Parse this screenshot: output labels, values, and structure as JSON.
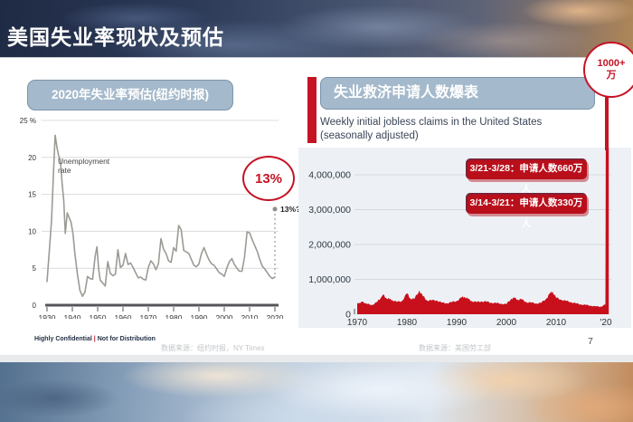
{
  "slide": {
    "title": "美国失业率现状及预估",
    "page_number": "7",
    "footer": {
      "confidential_left": "Highly Confidential",
      "confidential_sep": "|",
      "confidential_right": "Not for Distribution",
      "source_left": "数据来源：纽约时报，NY Times",
      "source_right": "数据来源：美国劳工部"
    },
    "colors": {
      "accent_red": "#c41425",
      "header_fill": "#a4b9cb",
      "header_border": "#7a95ac",
      "panel_bg": "#edf1f5",
      "line_gray": "#9b9b95"
    }
  },
  "left_panel": {
    "header": "2020年失业率预估(纽约时报)",
    "callout": "13%"
  },
  "right_panel": {
    "header": "失业救济申请人数爆表",
    "subtitle_line1": "Weekly initial jobless claims in the United States",
    "subtitle_line2": "(seasonally adjusted)",
    "badges": [
      {
        "label": "3/21-3/28：申请人数660万人"
      },
      {
        "label": "3/14-3/21：申请人数330万人"
      }
    ],
    "spike_callout_line1": "1000+",
    "spike_callout_line2": "万"
  },
  "chart_data": [
    {
      "type": "line",
      "title": "2020年失业率预估(纽约时报)",
      "xlabel": "",
      "ylabel": "Unemployment rate (%)",
      "annotation_lines": [
        "Unemployment",
        "rate"
      ],
      "x_ticks": [
        1930,
        1940,
        1950,
        1960,
        1970,
        1980,
        1990,
        2000,
        2010,
        2020
      ],
      "x_tick_labels": [
        "1930",
        "1940",
        "1950",
        "1960",
        "1970",
        "1980",
        "1990",
        "2000",
        "2010",
        "2020"
      ],
      "y_ticks": [
        0,
        5,
        10,
        15,
        20,
        25
      ],
      "y_tick_labels": [
        "0",
        "5",
        "10",
        "15",
        "20",
        "25 %"
      ],
      "xlim": [
        1930,
        2020
      ],
      "ylim": [
        0,
        25
      ],
      "grid": true,
      "line_color": "#9b9b95",
      "projection": {
        "x": 2020,
        "y": 13,
        "label": "13%?"
      },
      "callout": "13%",
      "series": [
        {
          "name": "Unemployment rate",
          "points": [
            [
              1930,
              3.2
            ],
            [
              1931,
              7.8
            ],
            [
              1931.8,
              11.5
            ],
            [
              1932.5,
              17.5
            ],
            [
              1933.2,
              23
            ],
            [
              1934,
              21.2
            ],
            [
              1934.6,
              20.2
            ],
            [
              1935.3,
              19.6
            ],
            [
              1936,
              16.3
            ],
            [
              1936.6,
              14.2
            ],
            [
              1937.2,
              9.7
            ],
            [
              1938,
              12.5
            ],
            [
              1938.8,
              11.8
            ],
            [
              1939.5,
              11.2
            ],
            [
              1940.3,
              9.6
            ],
            [
              1941,
              7
            ],
            [
              1942,
              4.2
            ],
            [
              1943,
              2
            ],
            [
              1944,
              1.2
            ],
            [
              1945,
              1.8
            ],
            [
              1946,
              3.9
            ],
            [
              1947,
              3.6
            ],
            [
              1948,
              3.5
            ],
            [
              1949,
              6.6
            ],
            [
              1949.7,
              7.9
            ],
            [
              1950.4,
              4.9
            ],
            [
              1951,
              3.4
            ],
            [
              1952,
              3
            ],
            [
              1953,
              2.6
            ],
            [
              1954,
              5.9
            ],
            [
              1955,
              4.3
            ],
            [
              1956,
              4
            ],
            [
              1957,
              4.2
            ],
            [
              1958,
              7.5
            ],
            [
              1959,
              5.1
            ],
            [
              1960,
              5.4
            ],
            [
              1961,
              7
            ],
            [
              1962,
              5.5
            ],
            [
              1963,
              5.7
            ],
            [
              1964,
              5.1
            ],
            [
              1965,
              4.4
            ],
            [
              1966,
              3.7
            ],
            [
              1967,
              3.8
            ],
            [
              1968,
              3.5
            ],
            [
              1969,
              3.4
            ],
            [
              1970,
              5.1
            ],
            [
              1971,
              6
            ],
            [
              1972,
              5.6
            ],
            [
              1973,
              4.8
            ],
            [
              1974,
              5.6
            ],
            [
              1975,
              9
            ],
            [
              1976,
              7.6
            ],
            [
              1977,
              7
            ],
            [
              1978,
              6
            ],
            [
              1979,
              5.8
            ],
            [
              1980,
              7.8
            ],
            [
              1981,
              7.3
            ],
            [
              1982,
              10.8
            ],
            [
              1983,
              10.2
            ],
            [
              1984,
              7.4
            ],
            [
              1985,
              7.2
            ],
            [
              1986,
              7
            ],
            [
              1987,
              6.2
            ],
            [
              1988,
              5.4
            ],
            [
              1989,
              5.2
            ],
            [
              1990,
              5.6
            ],
            [
              1991,
              7
            ],
            [
              1992,
              7.8
            ],
            [
              1993,
              6.9
            ],
            [
              1994,
              6.1
            ],
            [
              1995,
              5.6
            ],
            [
              1996,
              5.4
            ],
            [
              1997,
              4.9
            ],
            [
              1998,
              4.4
            ],
            [
              1999,
              4.2
            ],
            [
              2000,
              3.9
            ],
            [
              2001,
              5
            ],
            [
              2002,
              5.9
            ],
            [
              2003,
              6.3
            ],
            [
              2004,
              5.5
            ],
            [
              2005,
              5
            ],
            [
              2006,
              4.6
            ],
            [
              2007,
              4.6
            ],
            [
              2008,
              6.5
            ],
            [
              2009,
              9.9
            ],
            [
              2010,
              9.8
            ],
            [
              2011,
              8.9
            ],
            [
              2012,
              8.1
            ],
            [
              2013,
              7.3
            ],
            [
              2014,
              6.2
            ],
            [
              2015,
              5.3
            ],
            [
              2016,
              4.9
            ],
            [
              2017,
              4.4
            ],
            [
              2018,
              3.9
            ],
            [
              2019,
              3.6
            ],
            [
              2020,
              3.8
            ]
          ]
        }
      ]
    },
    {
      "type": "area",
      "title": "失业救济申请人数爆表",
      "subtitle": "Weekly initial jobless claims in the United States (seasonally adjusted)",
      "x_ticks": [
        1970,
        1980,
        1990,
        2000,
        2010,
        2020
      ],
      "x_tick_labels": [
        "1970",
        "1980",
        "1990",
        "2000",
        "2010",
        "'20"
      ],
      "y_ticks": [
        0,
        1000000,
        2000000,
        3000000,
        4000000
      ],
      "y_tick_labels": [
        "0",
        "1,000,000",
        "2,000,000",
        "3,000,000",
        "4,000,000"
      ],
      "xlim": [
        1970,
        2020.5
      ],
      "ylim": [
        0,
        4400000
      ],
      "grid": true,
      "fill_color": "#c8101c",
      "spike": {
        "x": 2020.25,
        "value": 6600000,
        "label": "1000+万"
      },
      "annotations": [
        "3/21-3/28：申请人数660万人",
        "3/14-3/21：申请人数330万人"
      ],
      "points": [
        [
          1970,
          300000
        ],
        [
          1970.5,
          330000
        ],
        [
          1971,
          355000
        ],
        [
          1971.6,
          320000
        ],
        [
          1972,
          295000
        ],
        [
          1973,
          265000
        ],
        [
          1974,
          350000
        ],
        [
          1974.8,
          480000
        ],
        [
          1975.2,
          560000
        ],
        [
          1975.8,
          470000
        ],
        [
          1976.5,
          430000
        ],
        [
          1977,
          410000
        ],
        [
          1978,
          350000
        ],
        [
          1979,
          380000
        ],
        [
          1980,
          600000
        ],
        [
          1980.7,
          450000
        ],
        [
          1981.5,
          440000
        ],
        [
          1982.5,
          680000
        ],
        [
          1983.2,
          520000
        ],
        [
          1984,
          400000
        ],
        [
          1985,
          395000
        ],
        [
          1986,
          400000
        ],
        [
          1987,
          330000
        ],
        [
          1988,
          318000
        ],
        [
          1989,
          345000
        ],
        [
          1990,
          382000
        ],
        [
          1991,
          480000
        ],
        [
          1991.6,
          500000
        ],
        [
          1992.3,
          440000
        ],
        [
          1993,
          380000
        ],
        [
          1994,
          348000
        ],
        [
          1995,
          372000
        ],
        [
          1996,
          358000
        ],
        [
          1997,
          330000
        ],
        [
          1998,
          318000
        ],
        [
          1999,
          300000
        ],
        [
          2000,
          288000
        ],
        [
          2001,
          450000
        ],
        [
          2001.6,
          468000
        ],
        [
          2002.3,
          418000
        ],
        [
          2003,
          428000
        ],
        [
          2004,
          348000
        ],
        [
          2005,
          332000
        ],
        [
          2006,
          308000
        ],
        [
          2007,
          325000
        ],
        [
          2008,
          450000
        ],
        [
          2008.8,
          600000
        ],
        [
          2009.3,
          650000
        ],
        [
          2010,
          470000
        ],
        [
          2011,
          420000
        ],
        [
          2012,
          378000
        ],
        [
          2013,
          348000
        ],
        [
          2014,
          308000
        ],
        [
          2015,
          282000
        ],
        [
          2016,
          264000
        ],
        [
          2017,
          244000
        ],
        [
          2018,
          224000
        ],
        [
          2019,
          218000
        ],
        [
          2019.9,
          281000
        ]
      ]
    }
  ]
}
